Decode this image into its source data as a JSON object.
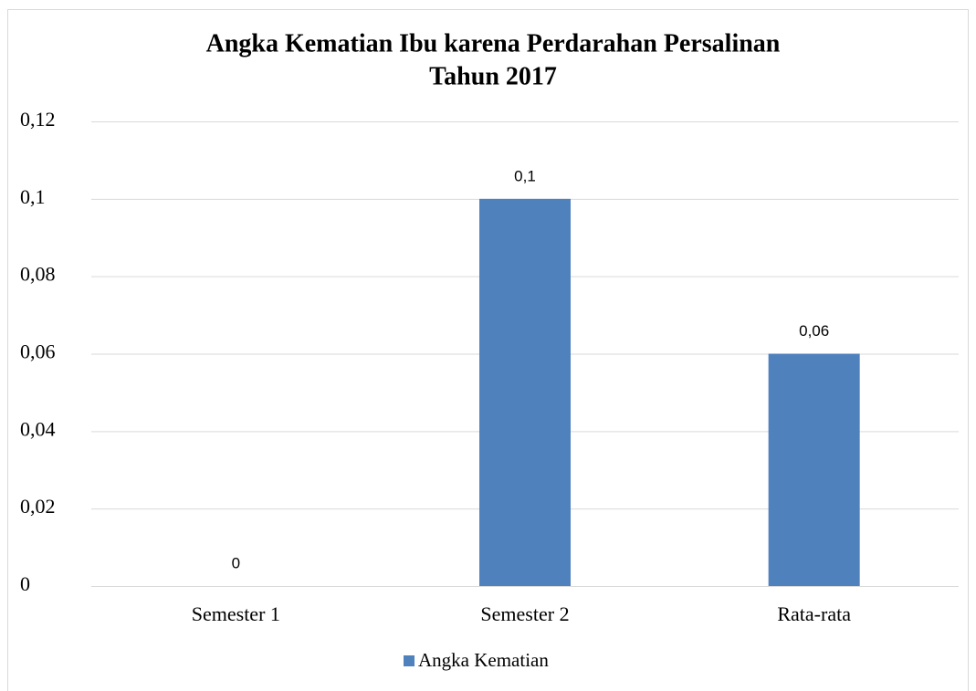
{
  "chart_data": {
    "type": "bar",
    "title": [
      "Angka Kematian Ibu karena Perdarahan Persalinan",
      "Tahun 2017"
    ],
    "categories": [
      "Semester 1",
      "Semester 2",
      "Rata-rata"
    ],
    "series": [
      {
        "name": "Angka Kematian",
        "color": "#4f81bd",
        "values": [
          0,
          0.1,
          0.06
        ],
        "value_labels": [
          "0",
          "0,1",
          "0,06"
        ]
      }
    ],
    "ylim": [
      0,
      0.12
    ],
    "yticks": [
      0,
      {
        "value": 0.02,
        "label": "0,02"
      },
      {
        "value": 0.04,
        "label": "0,04"
      },
      {
        "value": 0.06,
        "label": "0,06"
      },
      {
        "value": 0.08,
        "label": "0,08"
      },
      {
        "value": 0.1,
        "label": "0,1"
      },
      {
        "value": 0.12,
        "label": "0,12"
      }
    ],
    "grid": true,
    "legend": "bottom"
  }
}
